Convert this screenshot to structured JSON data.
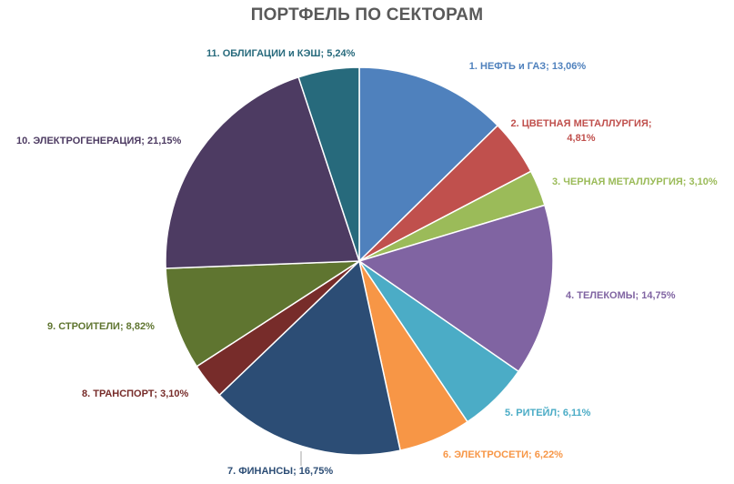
{
  "chart_data": {
    "type": "pie",
    "title": "ПОРТФЕЛЬ ПО СЕКТОРАМ",
    "slices": [
      {
        "label": "1. НЕФТЬ и ГАЗ; 13,06%",
        "value": 13.06,
        "color": "#4f81bd"
      },
      {
        "label": "2. ЦВЕТНАЯ МЕТАЛЛУРГИЯ;",
        "label2": "4,81%",
        "value": 4.81,
        "color": "#c0504d"
      },
      {
        "label": "3. ЧЕРНАЯ МЕТАЛЛУРГИЯ; 3,10%",
        "value": 3.1,
        "color": "#9bbb59"
      },
      {
        "label": "4. ТЕЛЕКОМЫ; 14,75%",
        "value": 14.75,
        "color": "#8064a2"
      },
      {
        "label": "5. РИТЕЙЛ; 6,11%",
        "value": 6.11,
        "color": "#4bacc6"
      },
      {
        "label": "6. ЭЛЕКТРОСЕТИ; 6,22%",
        "value": 6.22,
        "color": "#f79646"
      },
      {
        "label": "7. ФИНАНСЫ; 16,75%",
        "value": 16.75,
        "color": "#2c4d75"
      },
      {
        "label": "8. ТРАНСПОРТ; 3,10%",
        "value": 3.1,
        "color": "#772c2a"
      },
      {
        "label": "9. СТРОИТЕЛИ; 8,82%",
        "value": 8.82,
        "color": "#5f7530"
      },
      {
        "label": "10. ЭЛЕКТРОГЕНЕРАЦИЯ; 21,15%",
        "value": 21.15,
        "color": "#4d3b62"
      },
      {
        "label": "11. ОБЛИГАЦИИ и КЭШ; 5,24%",
        "value": 5.24,
        "color": "#276a7c"
      }
    ],
    "label_colors": [
      "#4f81bd",
      "#c0504d",
      "#9bbb59",
      "#8064a2",
      "#4bacc6",
      "#f79646",
      "#2c4d75",
      "#772c2a",
      "#5f7530",
      "#4d3b62",
      "#276a7c"
    ]
  }
}
